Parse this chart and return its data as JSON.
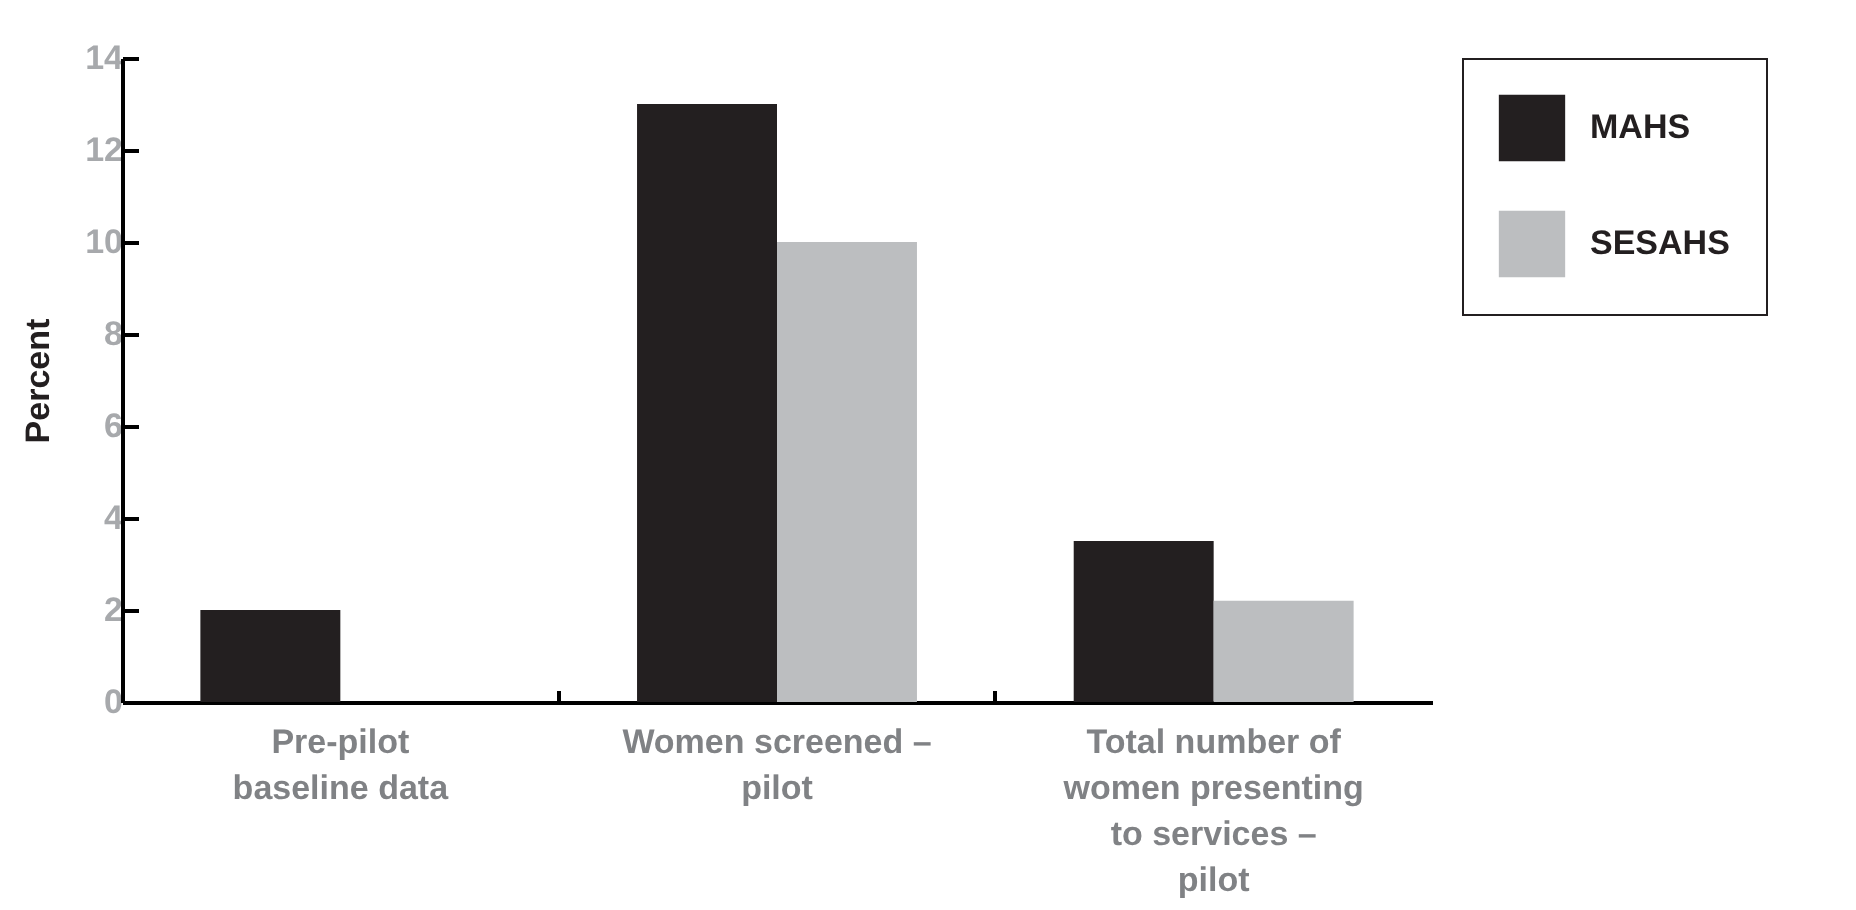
{
  "chart_data": {
    "type": "bar",
    "ylabel": "Percent",
    "categories": [
      "Pre-pilot baseline data",
      "Women screened – pilot",
      "Total number of women presenting to services – pilot"
    ],
    "series": [
      {
        "name": "MAHS",
        "color": "#231f20",
        "values": [
          2,
          13,
          3.5
        ]
      },
      {
        "name": "SESAHS",
        "color": "#bcbec0",
        "values": [
          null,
          10,
          2.2
        ]
      }
    ],
    "ylim": [
      0,
      14
    ],
    "yticks": [
      0,
      2,
      4,
      6,
      8,
      10,
      12,
      14
    ],
    "grid": false,
    "legend": "top right"
  }
}
